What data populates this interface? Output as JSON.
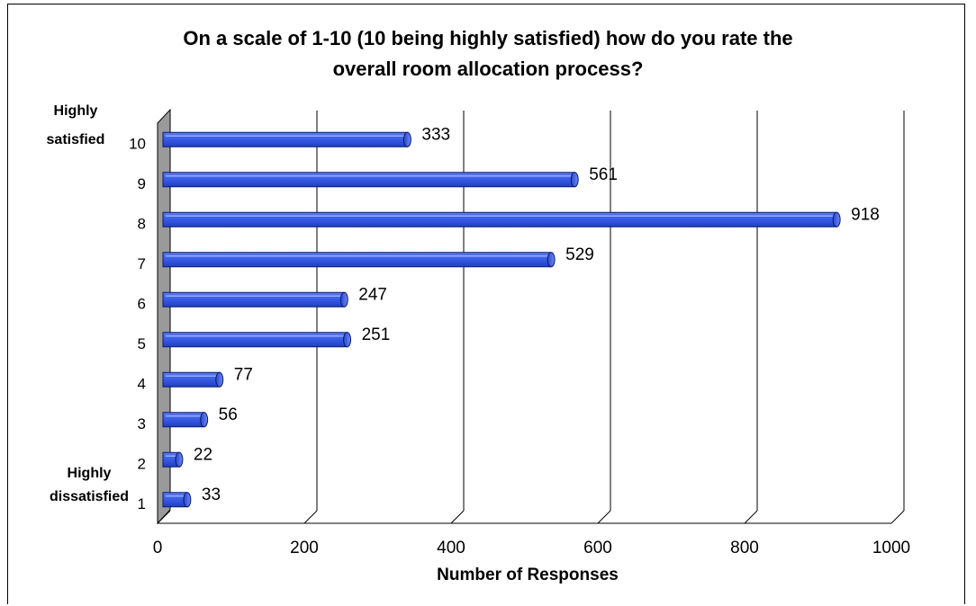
{
  "chart_data": {
    "type": "bar",
    "orientation": "horizontal",
    "title_lines": [
      "On a scale of 1-10 (10 being highly satisfied) how do you rate the",
      "overall room allocation process?"
    ],
    "categories": [
      "1",
      "2",
      "3",
      "4",
      "5",
      "6",
      "7",
      "8",
      "9",
      "10"
    ],
    "values": [
      33,
      22,
      56,
      77,
      251,
      247,
      529,
      918,
      561,
      333
    ],
    "xlabel": "Number of Responses",
    "ylabel": "",
    "xlim": [
      0,
      1000
    ],
    "x_ticks": [
      0,
      200,
      400,
      600,
      800,
      1000
    ],
    "grid": "vertical",
    "legend": "none",
    "bar_color": "#3355dd",
    "scale_end_labels": {
      "top_line1": "Highly",
      "top_line2": "satisfied",
      "bottom_line1": "Highly",
      "bottom_line2": "dissatisfied"
    }
  }
}
